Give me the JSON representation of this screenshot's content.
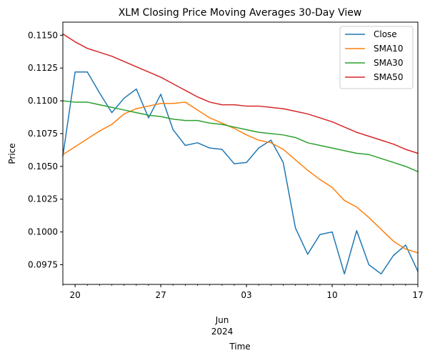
{
  "chart_data": {
    "type": "line",
    "title": "XLM Closing Price Moving Averages 30-Day View",
    "xlabel": "Time",
    "ylabel": "Price",
    "x_axis": {
      "start_date": "2024-05-19",
      "end_date": "2024-06-17",
      "major_ticks": [
        {
          "date": "2024-05-20",
          "label": "20"
        },
        {
          "date": "2024-05-27",
          "label": "27"
        },
        {
          "date": "2024-06-03",
          "label": "03"
        },
        {
          "date": "2024-06-10",
          "label": "10"
        },
        {
          "date": "2024-06-17",
          "label": "17"
        }
      ],
      "month_label_line1": "Jun",
      "month_label_line2": "2024"
    },
    "ylim": [
      0.096,
      0.116
    ],
    "y_ticks": [
      0.0975,
      0.1,
      0.1025,
      0.105,
      0.1075,
      0.11,
      0.1125,
      0.115
    ],
    "y_tick_labels": [
      "0.0975",
      "0.1000",
      "0.1025",
      "0.1050",
      "0.1075",
      "0.1100",
      "0.1125",
      "0.1150"
    ],
    "grid": false,
    "legend_position": "top-right",
    "x": [
      "2024-05-19",
      "2024-05-20",
      "2024-05-21",
      "2024-05-22",
      "2024-05-23",
      "2024-05-24",
      "2024-05-25",
      "2024-05-26",
      "2024-05-27",
      "2024-05-28",
      "2024-05-29",
      "2024-05-30",
      "2024-05-31",
      "2024-06-01",
      "2024-06-02",
      "2024-06-03",
      "2024-06-04",
      "2024-06-05",
      "2024-06-06",
      "2024-06-07",
      "2024-06-08",
      "2024-06-09",
      "2024-06-10",
      "2024-06-11",
      "2024-06-12",
      "2024-06-13",
      "2024-06-14",
      "2024-06-15",
      "2024-06-16",
      "2024-06-17"
    ],
    "series": [
      {
        "name": "Close",
        "color": "#1f77b4",
        "values": [
          0.1058,
          0.1122,
          0.1122,
          0.1106,
          0.1091,
          0.1102,
          0.1109,
          0.1087,
          0.1105,
          0.1078,
          0.1066,
          0.1068,
          0.1064,
          0.1063,
          0.1052,
          0.1053,
          0.1064,
          0.107,
          0.1053,
          0.1003,
          0.0983,
          0.0998,
          0.1,
          0.0968,
          0.1001,
          0.0975,
          0.0968,
          0.0982,
          0.099,
          0.097
        ]
      },
      {
        "name": "SMA10",
        "color": "#ff7f0e",
        "values": [
          0.1059,
          0.1065,
          0.1071,
          0.1077,
          0.1082,
          0.109,
          0.1094,
          0.1096,
          0.1098,
          0.1098,
          0.1099,
          0.1093,
          0.1087,
          0.1083,
          0.1079,
          0.1074,
          0.107,
          0.1068,
          0.1063,
          0.1055,
          0.1047,
          0.104,
          0.1034,
          0.1024,
          0.1019,
          0.1011,
          0.1002,
          0.0993,
          0.0987,
          0.0984
        ]
      },
      {
        "name": "SMA30",
        "color": "#2ca02c",
        "values": [
          0.11,
          0.1099,
          0.1099,
          0.1097,
          0.1095,
          0.1093,
          0.1091,
          0.1089,
          0.1088,
          0.1086,
          0.1085,
          0.1085,
          0.1083,
          0.1082,
          0.108,
          0.1078,
          0.1076,
          0.1075,
          0.1074,
          0.1072,
          0.1068,
          0.1066,
          0.1064,
          0.1062,
          0.106,
          0.1059,
          0.1056,
          0.1053,
          0.105,
          0.1046
        ]
      },
      {
        "name": "SMA50",
        "color": "#d62728",
        "values": [
          0.1151,
          0.1145,
          0.114,
          0.1137,
          0.1134,
          0.113,
          0.1126,
          0.1122,
          0.1118,
          0.1113,
          0.1108,
          0.1103,
          0.1099,
          0.1097,
          0.1097,
          0.1096,
          0.1096,
          0.1095,
          0.1094,
          0.1092,
          0.109,
          0.1087,
          0.1084,
          0.108,
          0.1076,
          0.1073,
          0.107,
          0.1067,
          0.1063,
          0.106
        ]
      }
    ]
  }
}
